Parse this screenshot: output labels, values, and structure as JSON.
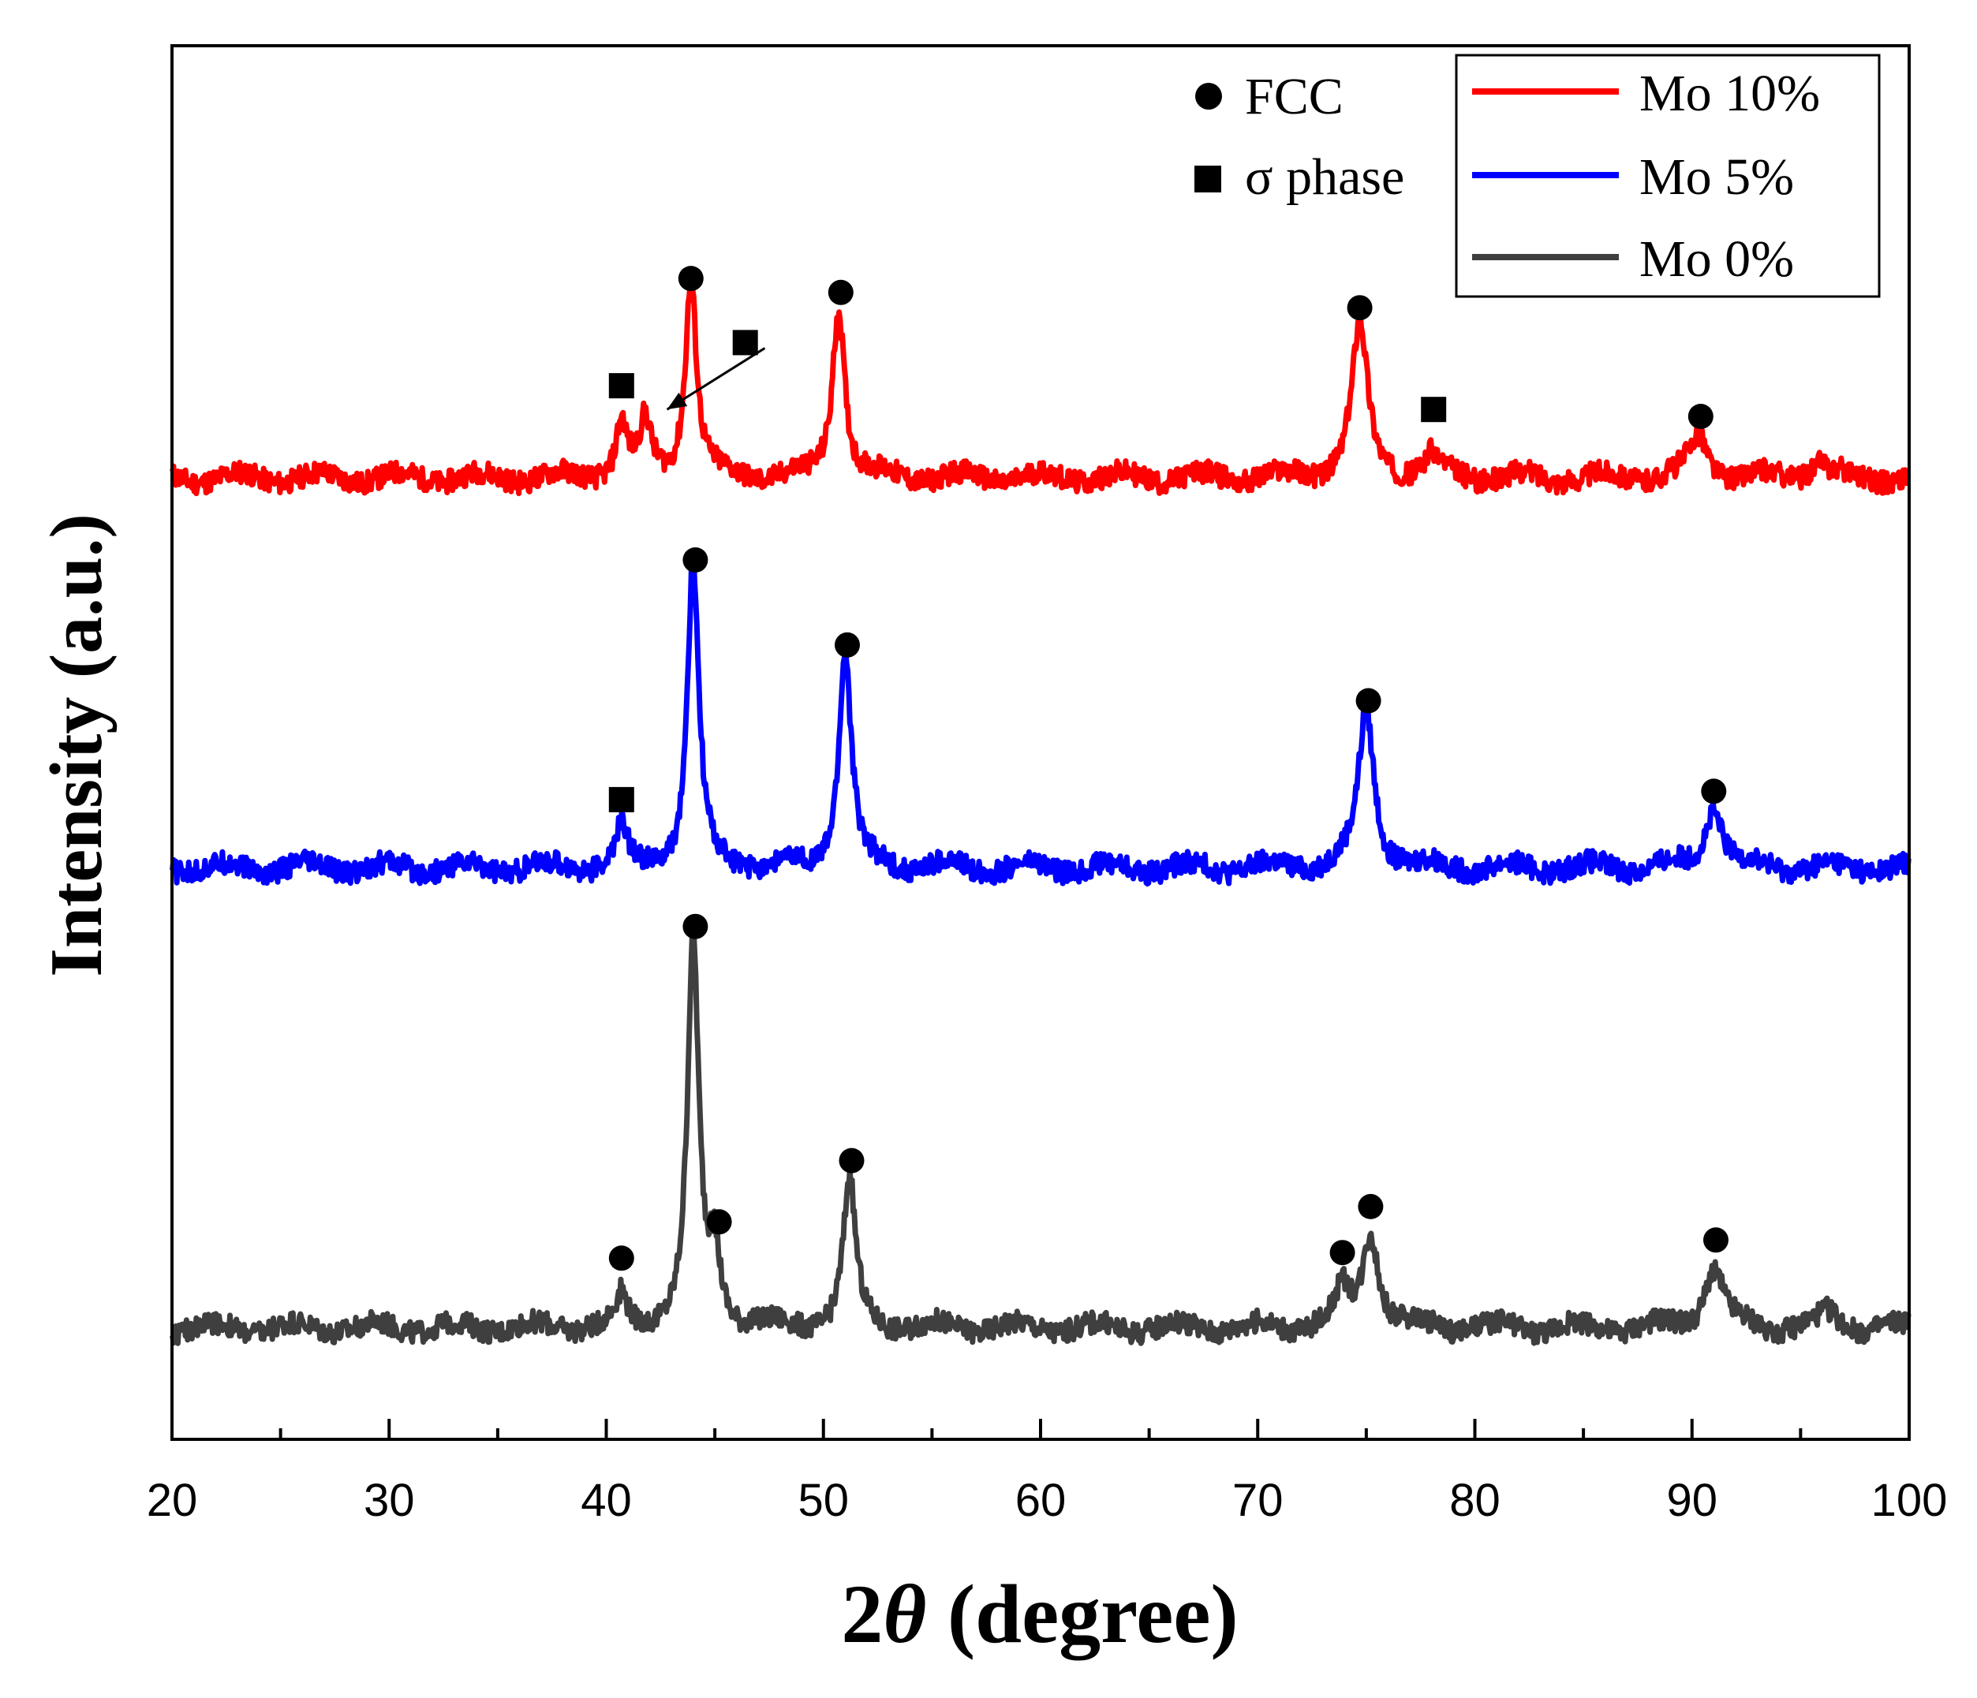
{
  "chart_data": {
    "type": "line",
    "title": "",
    "xlabel": "2θ (degree)",
    "xlabel_prefix": "2",
    "xlabel_symbol": "θ",
    "xlabel_suffix": " (degree)",
    "ylabel": "Intensity (a.u.)",
    "xlim": [
      20,
      100
    ],
    "ylim": [
      0,
      1
    ],
    "x_ticks": [
      "20",
      "30",
      "40",
      "50",
      "60",
      "70",
      "80",
      "90",
      "100"
    ],
    "y_ticks_visible": false,
    "grid": false,
    "legend_position": "top-right",
    "series": [
      {
        "name": "Mo 10%",
        "color": "#ff0000",
        "baseline": 0.69,
        "peaks": [
          [
            40.7,
            0.04
          ],
          [
            41.8,
            0.038
          ],
          [
            43.9,
            0.143
          ],
          [
            50.7,
            0.124
          ],
          [
            74.7,
            0.111
          ],
          [
            78.0,
            0.015
          ],
          [
            90.3,
            0.03
          ],
          [
            95.8,
            0.012
          ]
        ],
        "noise": 0.008
      },
      {
        "name": "Mo 5%",
        "color": "#0000ff",
        "baseline": 0.41,
        "peaks": [
          [
            40.7,
            0.029
          ],
          [
            44.0,
            0.218
          ],
          [
            51.0,
            0.155
          ],
          [
            75.0,
            0.112
          ],
          [
            91.0,
            0.043
          ]
        ],
        "noise": 0.008
      },
      {
        "name": "Mo 0%",
        "color": "#3f3f3f",
        "baseline": 0.08,
        "peaks": [
          [
            40.7,
            0.021
          ],
          [
            44.0,
            0.275
          ],
          [
            45.0,
            0.049
          ],
          [
            51.2,
            0.105
          ],
          [
            73.9,
            0.024
          ],
          [
            75.2,
            0.069
          ],
          [
            91.0,
            0.044
          ],
          [
            96.3,
            0.01
          ]
        ],
        "noise": 0.008
      }
    ],
    "markers": [
      {
        "shape": "circle",
        "x": 43.9,
        "y": 0.833
      },
      {
        "shape": "circle",
        "x": 50.8,
        "y": 0.823
      },
      {
        "shape": "circle",
        "x": 74.7,
        "y": 0.812
      },
      {
        "shape": "circle",
        "x": 90.4,
        "y": 0.734
      },
      {
        "shape": "square",
        "x": 40.7,
        "y": 0.756
      },
      {
        "shape": "square",
        "x": 46.4,
        "y": 0.787
      },
      {
        "shape": "square",
        "x": 78.1,
        "y": 0.739
      },
      {
        "shape": "circle",
        "x": 44.1,
        "y": 0.631
      },
      {
        "shape": "circle",
        "x": 51.1,
        "y": 0.57
      },
      {
        "shape": "circle",
        "x": 75.1,
        "y": 0.53
      },
      {
        "shape": "circle",
        "x": 91.0,
        "y": 0.465
      },
      {
        "shape": "square",
        "x": 40.7,
        "y": 0.459
      },
      {
        "shape": "circle",
        "x": 44.1,
        "y": 0.368
      },
      {
        "shape": "circle",
        "x": 51.3,
        "y": 0.2
      },
      {
        "shape": "circle",
        "x": 45.2,
        "y": 0.156
      },
      {
        "shape": "circle",
        "x": 40.7,
        "y": 0.13
      },
      {
        "shape": "circle",
        "x": 75.2,
        "y": 0.167
      },
      {
        "shape": "circle",
        "x": 73.9,
        "y": 0.134
      },
      {
        "shape": "circle",
        "x": 91.1,
        "y": 0.143
      }
    ],
    "arrow": {
      "from": [
        47.3,
        0.783
      ],
      "to": [
        42.8,
        0.739
      ]
    },
    "annotations": [
      {
        "shape": "circle",
        "label": "FCC"
      },
      {
        "shape": "square",
        "label": "σ phase"
      }
    ]
  }
}
